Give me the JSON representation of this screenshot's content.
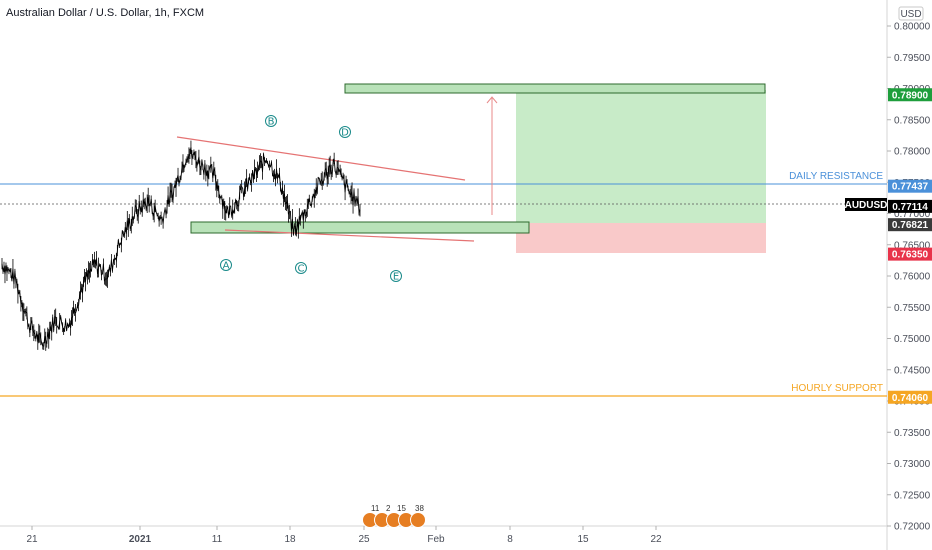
{
  "chart_title": "Australian Dollar / U.S. Dollar, 1h, FXCM",
  "currency": "USD",
  "symbol": "AUDUSD",
  "colors": {
    "candle": "#000000",
    "resistance": "#4a90d9",
    "support": "#f5a623",
    "target_tag": "#1e9e3c",
    "stop_tag": "#e8334a",
    "current_tag": "#000000",
    "level_tag": "#3a3a3a",
    "trend": "#e57373",
    "wave": "#1a8a8a",
    "profit_zone": "#c8ebc8",
    "loss_zone": "#f9c9c9",
    "arrow": "#e88a8a"
  },
  "y_axis": {
    "min": 0.72,
    "max": 0.8,
    "ticks": [
      "0.80000",
      "0.79500",
      "0.79000",
      "0.78500",
      "0.78000",
      "0.77500",
      "0.77000",
      "0.76500",
      "0.76000",
      "0.75500",
      "0.75000",
      "0.74500",
      "0.74000",
      "0.73500",
      "0.73000",
      "0.72500",
      "0.72000"
    ]
  },
  "x_axis": {
    "labels": [
      "21",
      "2021",
      "11",
      "18",
      "25",
      "Feb",
      "8",
      "15",
      "22"
    ]
  },
  "price_tags": [
    {
      "value": "0.78900",
      "kind": "target"
    },
    {
      "value": "0.77437",
      "kind": "resistance"
    },
    {
      "value": "0.77114",
      "kind": "current"
    },
    {
      "value": "0.76821",
      "kind": "level"
    },
    {
      "value": "0.76350",
      "kind": "stop"
    },
    {
      "value": "0.74060",
      "kind": "support"
    }
  ],
  "horizontal_lines": [
    {
      "label": "DAILY RESISTANCE",
      "value": 0.77437
    },
    {
      "label": "HOURLY SUPPORT",
      "value": 0.7406
    }
  ],
  "wave_labels": [
    "A",
    "B",
    "C",
    "D",
    "E"
  ],
  "events": {
    "counts": [
      "11",
      "2",
      "15",
      "38"
    ]
  },
  "chart_data": {
    "type": "line",
    "title": "Australian Dollar / U.S. Dollar, 1h, FXCM",
    "xlabel": "",
    "ylabel": "",
    "ylim": [
      0.72,
      0.8
    ],
    "series": [
      {
        "name": "AUDUSD",
        "points": [
          [
            "2020-12-17",
            0.762
          ],
          [
            "2020-12-18",
            0.7595
          ],
          [
            "2020-12-21",
            0.7525
          ],
          [
            "2020-12-21",
            0.749
          ],
          [
            "2020-12-22",
            0.753
          ],
          [
            "2020-12-23",
            0.752
          ],
          [
            "2020-12-24",
            0.758
          ],
          [
            "2020-12-28",
            0.762
          ],
          [
            "2020-12-29",
            0.76
          ],
          [
            "2020-12-30",
            0.766
          ],
          [
            "2020-12-31",
            0.77
          ],
          [
            "2021-01-01",
            0.772
          ],
          [
            "2021-01-04",
            0.769
          ],
          [
            "2021-01-05",
            0.774
          ],
          [
            "2021-01-06",
            0.78
          ],
          [
            "2021-01-07",
            0.778
          ],
          [
            "2021-01-08",
            0.776
          ],
          [
            "2021-01-11",
            0.77
          ],
          [
            "2021-01-12",
            0.773
          ],
          [
            "2021-01-13",
            0.776
          ],
          [
            "2021-01-14",
            0.779
          ],
          [
            "2021-01-15",
            0.775
          ],
          [
            "2021-01-18",
            0.767
          ],
          [
            "2021-01-19",
            0.771
          ],
          [
            "2021-01-20",
            0.775
          ],
          [
            "2021-01-21",
            0.778
          ],
          [
            "2021-01-22",
            0.774
          ],
          [
            "2021-01-25",
            0.7711
          ]
        ]
      }
    ]
  }
}
